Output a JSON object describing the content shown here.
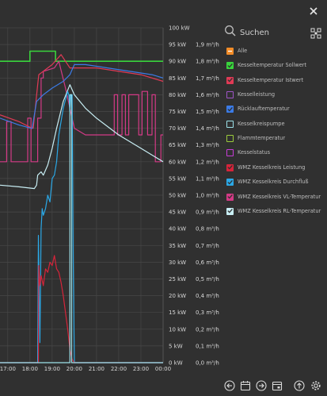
{
  "search": {
    "label": "Suchen"
  },
  "legend": [
    {
      "label": "Alle",
      "color": "#f28c28",
      "checked": false,
      "minus": true
    },
    {
      "label": "Kesseltemperatur Sollwert",
      "color": "#39d43c",
      "checked": true
    },
    {
      "label": "Kesseltemperatur Istwert",
      "color": "#e03a55",
      "checked": true
    },
    {
      "label": "Kesselleistung",
      "color": "#a055c8",
      "checked": false
    },
    {
      "label": "Rücklauftemperatur",
      "color": "#3b7be6",
      "checked": true
    },
    {
      "label": "Kesselkreispumpe",
      "color": "#9de2ea",
      "checked": false
    },
    {
      "label": "Flammtemperatur",
      "color": "#9ccc3c",
      "checked": false
    },
    {
      "label": "Kesselstatus",
      "color": "#c83dd8",
      "checked": false
    },
    {
      "label": "WMZ Kesselkreis Leistung",
      "color": "#d6243a",
      "checked": true
    },
    {
      "label": "WMZ Kesselkreis Durchfluß",
      "color": "#2ba8e6",
      "checked": true
    },
    {
      "label": "WMZ Kesselkreis VL-Temperatur",
      "color": "#d43a86",
      "checked": true
    },
    {
      "label": "WMZ Kesselkreis RL-Temperatur",
      "color": "#c8eef4",
      "checked": true
    }
  ],
  "icons": {
    "search": "search-icon",
    "close": "close-icon",
    "grid": "grid-toggle-icon",
    "toolbar": [
      "arrow-left-icon",
      "calendar-icon",
      "arrow-right-icon",
      "calendar-range-icon",
      "upload-icon",
      "gear-icon"
    ]
  },
  "chart_data": {
    "type": "line",
    "x_ticks": [
      "17:00",
      "18:00",
      "19:00",
      "20:00",
      "21:00",
      "22:00",
      "23:00",
      "00:00"
    ],
    "xlim": [
      16.65,
      24.0
    ],
    "y_left_ticks": [
      "0 kW",
      "5 kW",
      "10 kW",
      "15 kW",
      "20 kW",
      "25 kW",
      "30 kW",
      "35 kW",
      "40 kW",
      "45 kW",
      "50 kW",
      "55 kW",
      "60 kW",
      "65 kW",
      "70 kW",
      "75 kW",
      "80 kW",
      "85 kW",
      "90 kW",
      "95 kW",
      "100 kW"
    ],
    "y_right_ticks": [
      "0,0 m³/h",
      "0,1 m³/h",
      "0,2 m³/h",
      "0,3 m³/h",
      "0,4 m³/h",
      "0,5 m³/h",
      "0,6 m³/h",
      "0,7 m³/h",
      "0,8 m³/h",
      "0,9 m³/h",
      "1,0 m³/h",
      "1,1 m³/h",
      "1,2 m³/h",
      "1,3 m³/h",
      "1,4 m³/h",
      "1,5 m³/h",
      "1,6 m³/h",
      "1,7 m³/h",
      "1,8 m³/h",
      "1,9 m³/h"
    ],
    "ylim": [
      0,
      100
    ],
    "grid": true,
    "series": [
      {
        "name": "Kesseltemperatur Sollwert",
        "color": "#39d43c",
        "x": [
          16.65,
          18.0,
          18.0,
          19.15,
          19.15,
          19.5,
          19.5,
          24.0
        ],
        "y": [
          90,
          90,
          93,
          93,
          90,
          90,
          90,
          90
        ]
      },
      {
        "name": "WMZ Kesselkreis VL-Temperatur",
        "color": "#d43a86",
        "x": [
          16.65,
          16.95,
          16.95,
          17.15,
          17.15,
          17.9,
          17.9,
          18.05,
          18.05,
          18.35,
          18.35,
          18.5,
          18.5,
          18.6,
          18.6,
          19.1,
          19.3,
          19.6,
          20.0,
          20.5,
          21.0,
          21.5,
          21.8,
          21.8,
          21.95,
          21.95,
          22.15,
          22.15,
          22.3,
          22.3,
          22.45,
          22.45,
          22.9,
          22.9,
          23.05,
          23.05,
          23.3,
          23.3,
          23.5,
          23.5,
          23.65,
          23.65,
          23.9,
          23.9,
          24.0
        ],
        "y": [
          60,
          60,
          72,
          72,
          60,
          60,
          73,
          73,
          60,
          60,
          73,
          73,
          85,
          85,
          87,
          88,
          90,
          82,
          70,
          68,
          68,
          68,
          68,
          80,
          80,
          68,
          68,
          80,
          80,
          68,
          68,
          80,
          80,
          68,
          68,
          81,
          81,
          68,
          68,
          80,
          80,
          60,
          60,
          68,
          68
        ]
      },
      {
        "name": "Kesseltemperatur Istwert",
        "color": "#e03a55",
        "x": [
          16.65,
          17.5,
          18.1,
          18.15,
          18.35,
          18.4,
          19.0,
          19.4,
          19.8,
          20.0,
          20.5,
          21.0,
          22.0,
          23.0,
          24.0
        ],
        "y": [
          74,
          72,
          70,
          70,
          83,
          86,
          89,
          92,
          88,
          88,
          88,
          88,
          87,
          86,
          84
        ]
      },
      {
        "name": "Rücklauftemperatur",
        "color": "#3b7be6",
        "x": [
          16.65,
          17.5,
          18.05,
          18.1,
          18.3,
          18.6,
          19.0,
          19.5,
          19.8,
          20.0,
          20.5,
          21.5,
          22.5,
          23.5,
          24.0
        ],
        "y": [
          73,
          71,
          70,
          70,
          78,
          80,
          82,
          84,
          86,
          89,
          89,
          88,
          87,
          86,
          85
        ]
      },
      {
        "name": "WMZ Kesselkreis RL-Temperatur",
        "color": "#c8eef4",
        "x": [
          16.65,
          17.5,
          18.2,
          18.3,
          18.35,
          18.5,
          18.6,
          18.8,
          19.0,
          19.2,
          19.5,
          19.8,
          20.0,
          20.5,
          21.0,
          22.0,
          23.0,
          23.5,
          24.0
        ],
        "y": [
          53,
          52.5,
          52,
          53,
          56,
          57,
          56,
          59,
          64,
          70,
          78,
          83,
          80,
          76,
          73,
          68,
          64,
          62,
          60
        ]
      },
      {
        "name": "WMZ Kesselkreis Durchfluß",
        "color": "#2ba8e6",
        "x": [
          16.65,
          18.35,
          18.38,
          18.42,
          18.45,
          18.5,
          18.55,
          18.6,
          18.7,
          18.8,
          18.9,
          19.0,
          19.1,
          19.2,
          19.3,
          19.5,
          19.7,
          19.75,
          19.8,
          19.85,
          19.9,
          19.95,
          20.0,
          20.0,
          24.0
        ],
        "y": [
          0,
          0,
          38,
          20,
          6,
          40,
          46,
          44,
          46,
          50,
          48,
          55,
          56,
          60,
          68,
          76,
          81,
          80,
          75,
          80,
          80,
          30,
          0,
          0,
          0
        ]
      },
      {
        "name": "WMZ Kesselkreis Leistung",
        "color": "#d6243a",
        "x": [
          16.65,
          18.38,
          18.4,
          18.45,
          18.5,
          18.6,
          18.7,
          18.8,
          18.9,
          19.0,
          19.1,
          19.2,
          19.3,
          19.4,
          19.5,
          19.6,
          19.7,
          19.8,
          19.9,
          20.0,
          24.0
        ],
        "y": [
          0,
          0,
          29,
          23,
          26,
          23,
          28,
          27,
          30,
          29,
          32,
          28,
          27,
          24,
          20,
          15,
          10,
          4,
          1,
          0,
          0
        ]
      },
      {
        "name": "Kesselkreispumpe",
        "color": "#9de2ea",
        "x": [
          16.65,
          19.8,
          19.8,
          19.88,
          19.88,
          24.0
        ],
        "y": [
          0,
          0,
          80,
          80,
          0,
          0
        ]
      }
    ]
  }
}
